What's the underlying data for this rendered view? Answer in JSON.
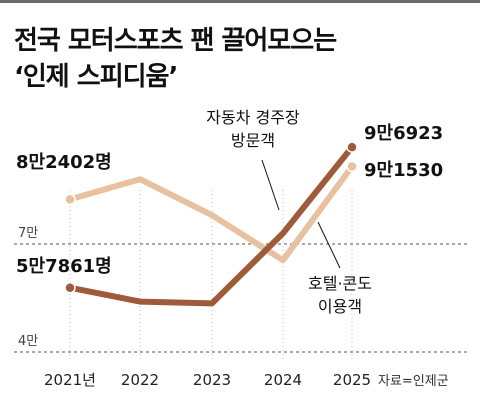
{
  "title": {
    "line1": "전국 모터스포츠 팬 끌어모으는",
    "line2": "‘인제 스피디움’"
  },
  "source": "자료=인제군",
  "y_ticks": [
    "7만",
    "4만"
  ],
  "annotations": {
    "circuit_line1": "자동차 경주장",
    "circuit_line2": "방문객",
    "hotel_line1": "호텔·콘도",
    "hotel_line2": "이용객"
  },
  "value_labels": {
    "hotel_first": "8만2402명",
    "circuit_first": "5만7861명",
    "circuit_last": "9만6923",
    "hotel_last": "9만1530"
  },
  "colors": {
    "circuit": "#9e5a3a",
    "hotel": "#e8c1a1",
    "grid": "#555555"
  },
  "chart_data": {
    "type": "line",
    "categories": [
      "2021년",
      "2022",
      "2023",
      "2024",
      "2025"
    ],
    "series": [
      {
        "name": "자동차 경주장 방문객",
        "values": [
          57861,
          54000,
          53500,
          73000,
          96923
        ]
      },
      {
        "name": "호텔·콘도 이용객",
        "values": [
          82402,
          88000,
          78000,
          65500,
          91530
        ]
      }
    ],
    "y_reference_values": [
      70000,
      40000
    ],
    "ylim": [
      40000,
      100000
    ],
    "grid": "dashed reference lines at 7만 and 4만",
    "legend": "none"
  }
}
